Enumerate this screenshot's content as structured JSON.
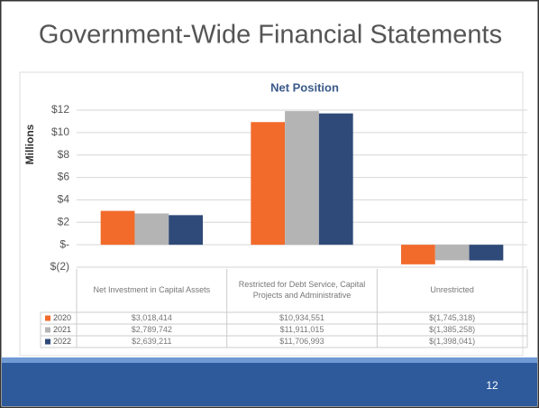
{
  "slide_title": "Government-Wide Financial Statements",
  "page_number": "12",
  "chart_data": {
    "type": "bar",
    "title": "Net Position",
    "y_label": "Millions",
    "categories": [
      "Net Investment in Capital Assets",
      "Restricted for Debt Service, Capital Projects and Administrative",
      "Unrestricted"
    ],
    "series": [
      {
        "name": "2020",
        "color": "#f26b2b",
        "values": [
          3.018414,
          10.934551,
          -1.745318
        ],
        "value_labels": [
          "$3,018,414",
          "$10,934,551",
          "$(1,745,318)"
        ]
      },
      {
        "name": "2021",
        "color": "#b4b4b4",
        "values": [
          2.789742,
          11.911015,
          -1.385258
        ],
        "value_labels": [
          "$2,789,742",
          "$11,911,015",
          "$(1,385,258)"
        ]
      },
      {
        "name": "2022",
        "color": "#2f4a78",
        "values": [
          2.639211,
          11.706993,
          -1.398041
        ],
        "value_labels": [
          "$2,639,211",
          "$11,706,993",
          "$(1,398,041)"
        ]
      }
    ],
    "ylim": [
      -2,
      12
    ],
    "yticks": [
      {
        "value": -2,
        "label": "$(2)"
      },
      {
        "value": 0,
        "label": "$-"
      },
      {
        "value": 2,
        "label": "$2"
      },
      {
        "value": 4,
        "label": "$4"
      },
      {
        "value": 6,
        "label": "$6"
      },
      {
        "value": 8,
        "label": "$8"
      },
      {
        "value": 10,
        "label": "$10"
      },
      {
        "value": 12,
        "label": "$12"
      }
    ],
    "grid": true
  }
}
